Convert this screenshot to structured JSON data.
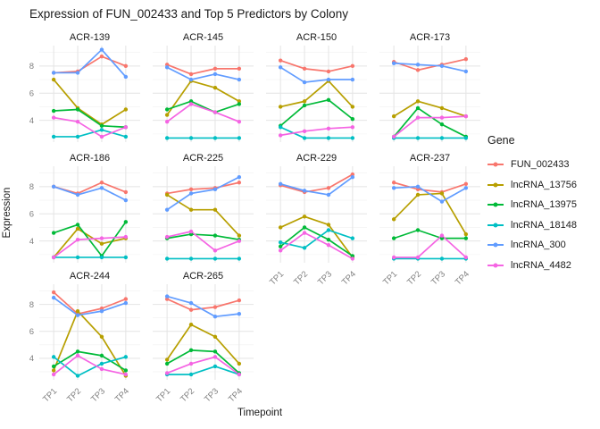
{
  "title": "Expression of FUN_002433 and Top 5 Predictors by Colony",
  "chart_data": {
    "type": "line",
    "title": "Expression of FUN_002433 and Top 5 Predictors by Colony",
    "xlabel": "Timepoint",
    "ylabel": "Expression",
    "x": [
      "TP1",
      "TP2",
      "TP3",
      "TP4"
    ],
    "ylim": [
      2.4,
      9.5
    ],
    "yticks_major": [
      4,
      6,
      8
    ],
    "yticks_minor": [
      3,
      5,
      7,
      9
    ],
    "grid": true,
    "legend_position": "right",
    "legend_title": "Gene",
    "series_names": [
      "FUN_002433",
      "lncRNA_13756",
      "lncRNA_13975",
      "lncRNA_18148",
      "lncRNA_300",
      "lncRNA_4482"
    ],
    "series_colors": [
      "#F8766D",
      "#B79F00",
      "#00BA38",
      "#00BFC4",
      "#619CFF",
      "#F564E3"
    ],
    "facets": [
      {
        "name": "ACR-139",
        "series": [
          [
            7.5,
            7.6,
            8.7,
            8.0
          ],
          [
            7.0,
            4.9,
            3.7,
            4.8
          ],
          [
            4.7,
            4.8,
            3.6,
            3.5
          ],
          [
            2.8,
            2.8,
            3.3,
            2.8
          ],
          [
            7.5,
            7.5,
            9.2,
            7.2
          ],
          [
            4.2,
            3.9,
            2.8,
            3.5
          ]
        ]
      },
      {
        "name": "ACR-145",
        "series": [
          [
            8.1,
            7.4,
            7.8,
            7.8
          ],
          [
            4.4,
            6.9,
            6.4,
            5.4
          ],
          [
            4.8,
            5.4,
            4.6,
            5.2
          ],
          [
            2.7,
            2.7,
            2.7,
            2.7
          ],
          [
            7.9,
            7.0,
            7.4,
            7.0
          ],
          [
            3.9,
            5.2,
            4.6,
            3.9
          ]
        ]
      },
      {
        "name": "ACR-150",
        "series": [
          [
            8.4,
            7.8,
            7.6,
            8.0
          ],
          [
            5.0,
            5.4,
            6.9,
            5.0
          ],
          [
            3.6,
            5.1,
            5.5,
            4.1
          ],
          [
            3.5,
            2.7,
            2.7,
            2.7
          ],
          [
            7.9,
            6.8,
            7.0,
            7.0
          ],
          [
            2.9,
            3.2,
            3.4,
            3.5
          ]
        ]
      },
      {
        "name": "ACR-173",
        "series": [
          [
            8.3,
            7.7,
            8.1,
            8.5
          ],
          [
            4.3,
            5.4,
            4.9,
            4.3
          ],
          [
            2.8,
            4.9,
            3.7,
            2.8
          ],
          [
            2.7,
            2.7,
            2.7,
            2.7
          ],
          [
            8.2,
            8.1,
            8.0,
            7.6
          ],
          [
            2.8,
            4.2,
            4.2,
            4.3
          ]
        ]
      },
      {
        "name": "ACR-186",
        "series": [
          [
            8.0,
            7.5,
            8.3,
            7.6
          ],
          [
            2.8,
            4.9,
            3.8,
            4.2
          ],
          [
            4.6,
            5.2,
            2.9,
            5.4
          ],
          [
            2.8,
            2.8,
            2.8,
            2.8
          ],
          [
            8.0,
            7.4,
            7.9,
            7.0
          ],
          [
            2.8,
            4.1,
            4.2,
            4.3
          ]
        ]
      },
      {
        "name": "ACR-225",
        "series": [
          [
            7.5,
            7.8,
            7.9,
            8.3
          ],
          [
            7.4,
            6.3,
            6.3,
            4.4
          ],
          [
            4.2,
            4.5,
            4.4,
            4.1
          ],
          [
            2.7,
            2.7,
            2.7,
            2.7
          ],
          [
            6.3,
            7.5,
            7.8,
            8.7
          ],
          [
            4.3,
            4.7,
            3.3,
            4.0
          ]
        ]
      },
      {
        "name": "ACR-229",
        "series": [
          [
            8.1,
            7.6,
            7.9,
            8.9
          ],
          [
            5.0,
            5.8,
            5.2,
            2.8
          ],
          [
            3.6,
            5.0,
            4.1,
            2.9
          ],
          [
            3.9,
            3.5,
            4.8,
            4.2
          ],
          [
            8.2,
            7.7,
            7.4,
            8.7
          ],
          [
            3.3,
            4.6,
            3.7,
            2.7
          ]
        ]
      },
      {
        "name": "ACR-237",
        "series": [
          [
            8.3,
            7.8,
            7.6,
            8.2
          ],
          [
            5.6,
            7.4,
            7.5,
            4.5
          ],
          [
            4.2,
            4.8,
            4.2,
            4.2
          ],
          [
            2.7,
            2.7,
            2.7,
            2.7
          ],
          [
            7.9,
            8.0,
            6.9,
            7.9
          ],
          [
            2.8,
            2.8,
            4.4,
            2.8
          ]
        ]
      },
      {
        "name": "ACR-244",
        "series": [
          [
            8.9,
            7.3,
            7.7,
            8.4
          ],
          [
            3.1,
            7.5,
            5.6,
            2.7
          ],
          [
            3.4,
            4.5,
            4.2,
            3.1
          ],
          [
            4.1,
            2.7,
            3.6,
            4.1
          ],
          [
            8.5,
            7.2,
            7.5,
            8.1
          ],
          [
            2.8,
            4.2,
            3.2,
            2.8
          ]
        ]
      },
      {
        "name": "ACR-265",
        "series": [
          [
            8.4,
            7.6,
            7.8,
            8.3
          ],
          [
            3.9,
            6.5,
            5.6,
            3.6
          ],
          [
            3.6,
            4.6,
            4.5,
            2.9
          ],
          [
            2.8,
            2.8,
            3.4,
            2.8
          ],
          [
            8.6,
            8.1,
            7.1,
            7.3
          ],
          [
            2.9,
            3.6,
            4.1,
            2.8
          ]
        ]
      }
    ]
  }
}
